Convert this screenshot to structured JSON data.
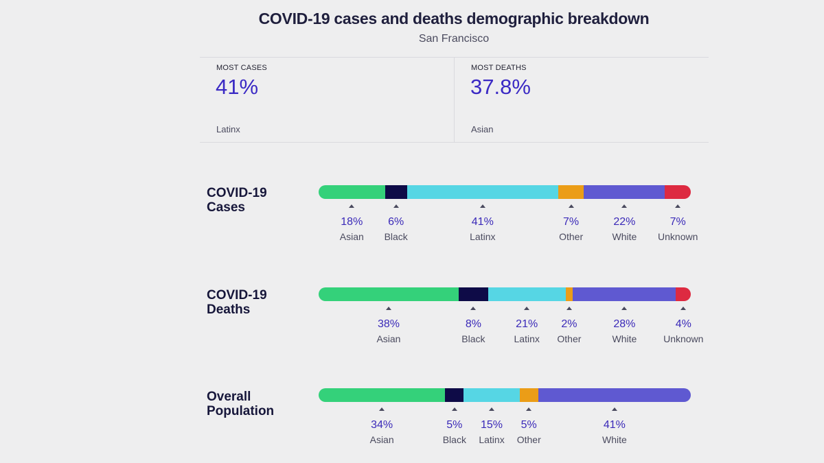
{
  "header": {
    "title": "COVID-19 cases and deaths demographic breakdown",
    "subtitle": "San Francisco"
  },
  "stats": {
    "most_cases": {
      "label": "MOST CASES",
      "value": "41%",
      "group": "Latinx"
    },
    "most_deaths": {
      "label": "MOST DEATHS",
      "value": "37.8%",
      "group": "Asian"
    }
  },
  "colors": {
    "Asian": "#34d17a",
    "Black": "#0e0b47",
    "Latinx": "#56d6e4",
    "Other": "#eb9d17",
    "White": "#5f59d1",
    "Unknown": "#dd2a41"
  },
  "chart_data": {
    "type": "bar",
    "orientation": "horizontal-stacked-100",
    "title": "COVID-19 cases and deaths demographic breakdown",
    "subtitle": "San Francisco",
    "unit": "%",
    "rows": [
      {
        "label": "COVID-19 Cases",
        "label_lines": [
          "COVID-19",
          "Cases"
        ],
        "segments": [
          {
            "name": "Asian",
            "value": 18,
            "display": "18%"
          },
          {
            "name": "Black",
            "value": 6,
            "display": "6%"
          },
          {
            "name": "Latinx",
            "value": 41,
            "display": "41%"
          },
          {
            "name": "Other",
            "value": 7,
            "display": "7%"
          },
          {
            "name": "White",
            "value": 22,
            "display": "22%"
          },
          {
            "name": "Unknown",
            "value": 7,
            "display": "7%"
          }
        ]
      },
      {
        "label": "COVID-19 Deaths",
        "label_lines": [
          "COVID-19",
          "Deaths"
        ],
        "segments": [
          {
            "name": "Asian",
            "value": 38,
            "display": "38%"
          },
          {
            "name": "Black",
            "value": 8,
            "display": "8%"
          },
          {
            "name": "Latinx",
            "value": 21,
            "display": "21%"
          },
          {
            "name": "Other",
            "value": 2,
            "display": "2%"
          },
          {
            "name": "White",
            "value": 28,
            "display": "28%"
          },
          {
            "name": "Unknown",
            "value": 4,
            "display": "4%"
          }
        ]
      },
      {
        "label": "Overall Population",
        "label_lines": [
          "Overall",
          "Population"
        ],
        "segments": [
          {
            "name": "Asian",
            "value": 34,
            "display": "34%"
          },
          {
            "name": "Black",
            "value": 5,
            "display": "5%"
          },
          {
            "name": "Latinx",
            "value": 15,
            "display": "15%"
          },
          {
            "name": "Other",
            "value": 5,
            "display": "5%"
          },
          {
            "name": "White",
            "value": 41,
            "display": "41%"
          }
        ]
      }
    ]
  }
}
